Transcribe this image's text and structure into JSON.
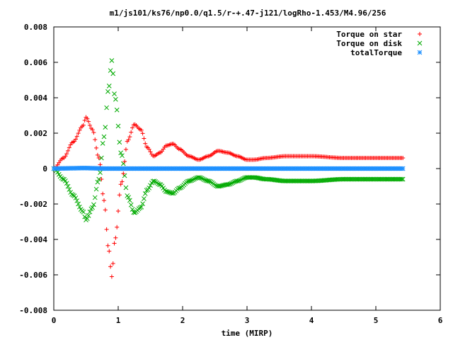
{
  "chart_data": {
    "type": "scatter",
    "title": "m1/js101/ks76/np0.0/q1.5/r-+.47-j121/logRho-1.453/M4.96/256",
    "xlabel": "time (MIRP)",
    "ylabel": "",
    "xlim": [
      0,
      6
    ],
    "ylim": [
      -0.008,
      0.008
    ],
    "x_ticks": [
      0,
      1,
      2,
      3,
      4,
      5,
      6
    ],
    "y_ticks": [
      -0.008,
      -0.006,
      -0.004,
      -0.002,
      0,
      0.002,
      0.004,
      0.006,
      0.008
    ],
    "x_tick_labels": [
      "0",
      "1",
      "2",
      "3",
      "4",
      "5",
      "6"
    ],
    "y_tick_labels": [
      "-0.008",
      "-0.006",
      "-0.004",
      "-0.002",
      "0",
      "0.002",
      "0.004",
      "0.006",
      "0.008"
    ],
    "grid": false,
    "legend_position": "top-right",
    "x_start": 0,
    "x_end": 5.42,
    "x_step": 0.02,
    "series": [
      {
        "name": "Torque on star",
        "marker": "plus",
        "color": "#ff0000",
        "values": [
          0,
          0.0006,
          0.0015,
          0.0024,
          0.0029,
          0.0022,
          0.0006,
          -0.0018,
          -0.0045,
          -0.0061,
          -0.004,
          -0.0008,
          0.0016,
          0.0025,
          0.0022,
          0.0012,
          0.0007,
          0.0009,
          0.0013,
          0.0014,
          0.0011,
          0.0007,
          0.0005,
          0.0007,
          0.001,
          0.0009,
          0.0007,
          0.0005,
          0.0005,
          0.0006,
          0.0007,
          0.0007,
          0.0006,
          0.0006,
          0.0006
        ]
      },
      {
        "name": "Torque on disk",
        "marker": "x",
        "color": "#00aa00",
        "values": [
          0,
          -0.0006,
          -0.0015,
          -0.0024,
          -0.0029,
          -0.0022,
          -0.0006,
          0.0018,
          0.0045,
          0.0061,
          0.004,
          0.0008,
          -0.0016,
          -0.0025,
          -0.0022,
          -0.0012,
          -0.0007,
          -0.0009,
          -0.0013,
          -0.0014,
          -0.0011,
          -0.0007,
          -0.0005,
          -0.0007,
          -0.001,
          -0.0009,
          -0.0007,
          -0.0005,
          -0.0005,
          -0.0006,
          -0.0007,
          -0.0007,
          -0.0006,
          -0.0006,
          -0.0006
        ]
      },
      {
        "name": "totalTorque",
        "marker": "asterisk",
        "color": "#1e90ff",
        "values": [
          0,
          1e-05,
          2e-05,
          3e-05,
          3e-05,
          2e-05,
          1e-05,
          0,
          0,
          0,
          0,
          0,
          0,
          0,
          0,
          0,
          0,
          0,
          0,
          0,
          0,
          0,
          0,
          0,
          0,
          0,
          0,
          0,
          0,
          0,
          0,
          0,
          0,
          0,
          0
        ]
      }
    ],
    "series_x_knots": [
      0,
      0.15,
      0.3,
      0.45,
      0.5,
      0.6,
      0.7,
      0.78,
      0.85,
      0.9,
      0.95,
      1.05,
      1.15,
      1.25,
      1.35,
      1.45,
      1.55,
      1.65,
      1.75,
      1.85,
      1.95,
      2.1,
      2.25,
      2.4,
      2.55,
      2.7,
      2.85,
      3.0,
      3.1,
      3.3,
      3.6,
      4.0,
      4.5,
      5.0,
      5.42
    ]
  }
}
